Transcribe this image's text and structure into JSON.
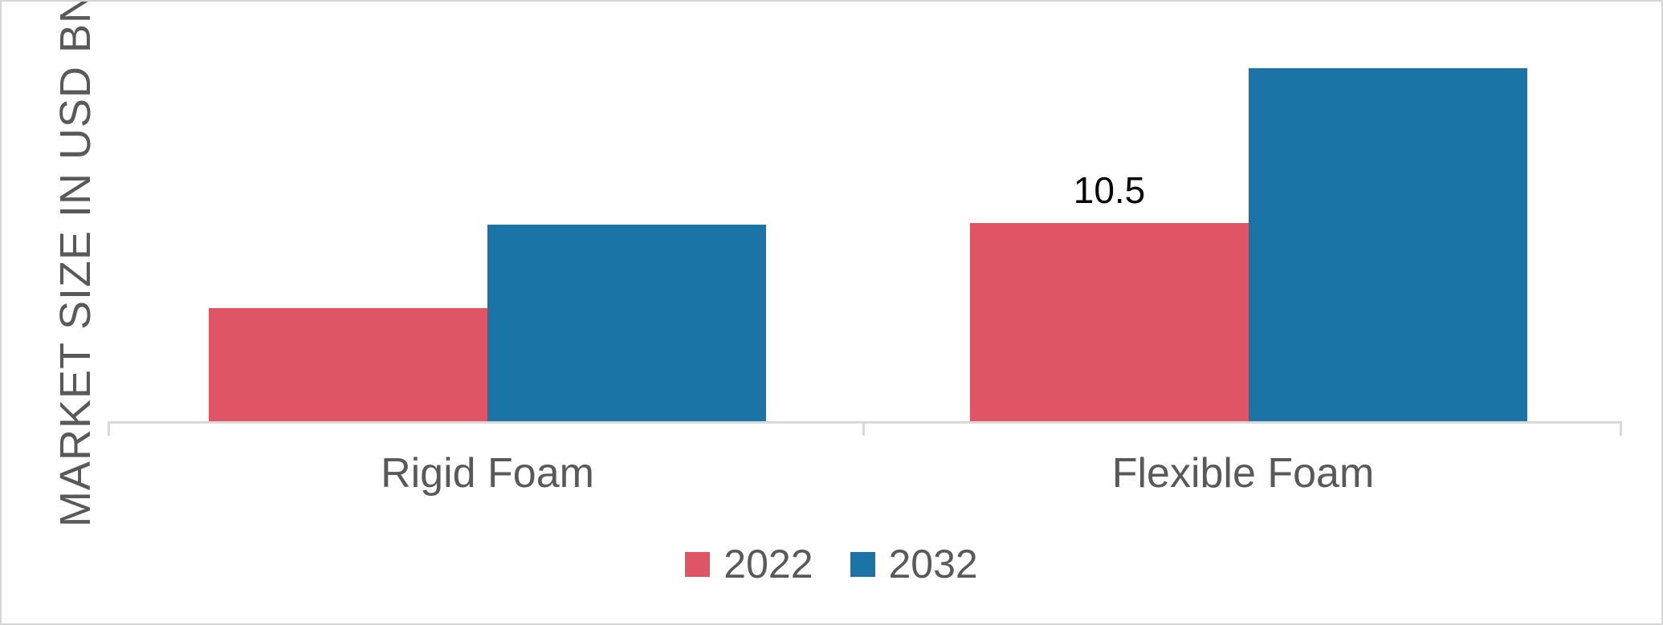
{
  "chart_data": {
    "type": "bar",
    "title": "",
    "xlabel": "",
    "ylabel": "MARKET SIZE IN USD BN",
    "categories": [
      "Rigid Foam",
      "Flexible Foam"
    ],
    "series": [
      {
        "name": "2022",
        "color": "#df5566",
        "values": [
          6.0,
          10.5
        ]
      },
      {
        "name": "2032",
        "color": "#1b74a6",
        "values": [
          10.4,
          18.7
        ]
      }
    ],
    "shown_data_labels": [
      {
        "series": "2022",
        "category": "Flexible Foam",
        "text": "10.5"
      }
    ],
    "ylim": [
      0,
      18.7
    ],
    "y_axis_ticks_visible": false,
    "grid": false,
    "legend_position": "bottom",
    "axis_color": "#d9d9d9",
    "text_color": "#595959",
    "data_label_color": "#000000"
  }
}
